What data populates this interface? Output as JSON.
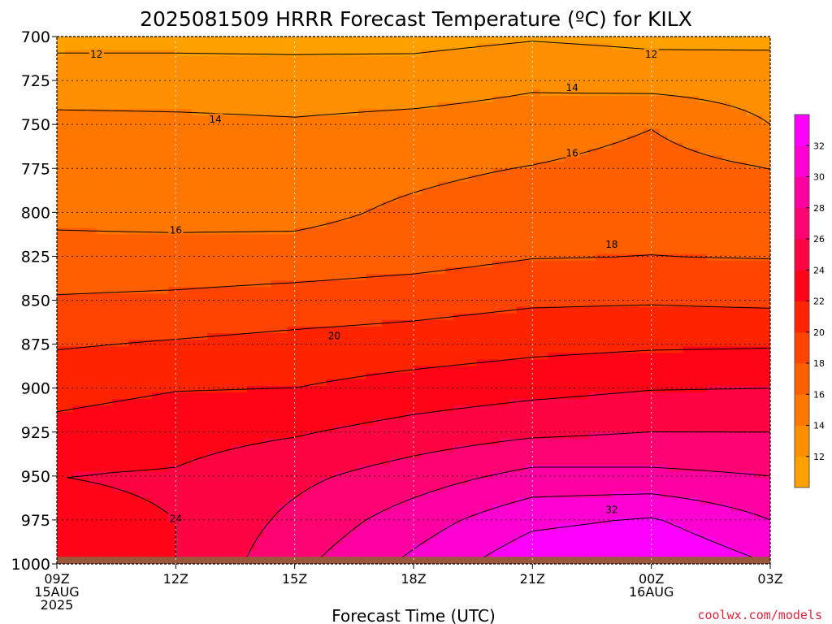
{
  "title": "2025081509 HRRR Forecast Temperature (ºC) for KILX",
  "credit": "coolwx.com/models",
  "chart_data": {
    "type": "contour",
    "title": "2025081509 HRRR Forecast Temperature (ºC) for KILX",
    "xlabel": "Forecast Time (UTC)",
    "ylabel": "",
    "x_hours": [
      0,
      3,
      6,
      9,
      12,
      15,
      18
    ],
    "x_ticks": [
      {
        "hour": 0,
        "lines": [
          "09Z",
          "15AUG",
          "2025"
        ]
      },
      {
        "hour": 3,
        "lines": [
          "12Z"
        ]
      },
      {
        "hour": 6,
        "lines": [
          "15Z"
        ]
      },
      {
        "hour": 9,
        "lines": [
          "18Z"
        ]
      },
      {
        "hour": 12,
        "lines": [
          "21Z"
        ]
      },
      {
        "hour": 15,
        "lines": [
          "00Z",
          "16AUG"
        ]
      },
      {
        "hour": 18,
        "lines": [
          "03Z"
        ]
      }
    ],
    "y_ticks": [
      700,
      725,
      750,
      775,
      800,
      825,
      850,
      875,
      900,
      925,
      950,
      975,
      1000
    ],
    "ylim": [
      1000,
      700
    ],
    "xlim": [
      0,
      18
    ],
    "grid": true,
    "surface_level_hpa": 996,
    "fill_levels": [
      12,
      14,
      16,
      18,
      20,
      22,
      24,
      26,
      28,
      30,
      32
    ],
    "fill_colors": [
      "#fe9000",
      "#fe7700",
      "#fe5f00",
      "#fe4400",
      "#fe2400",
      "#fe0416",
      "#fe0442",
      "#fe0472",
      "#fe00a2",
      "#fe00d2",
      "#fe00fe"
    ],
    "below_min_color": "#fea000",
    "ground_color": "#99593a",
    "colorbar_ticks": [
      12,
      14,
      16,
      18,
      20,
      22,
      24,
      26,
      28,
      30,
      32
    ],
    "contour_interval": 2,
    "contour_labels": [
      {
        "label": "12",
        "hour": 1.0,
        "hpa": 710
      },
      {
        "label": "12",
        "hour": 15.0,
        "hpa": 710
      },
      {
        "label": "14",
        "hour": 4.0,
        "hpa": 747
      },
      {
        "label": "14",
        "hour": 13.0,
        "hpa": 729
      },
      {
        "label": "16",
        "hour": 3.0,
        "hpa": 810
      },
      {
        "label": "16",
        "hour": 13.0,
        "hpa": 766
      },
      {
        "label": "18",
        "hour": 14.0,
        "hpa": 818
      },
      {
        "label": "20",
        "hour": 7.0,
        "hpa": 870
      },
      {
        "label": "24",
        "hour": 3.0,
        "hpa": 974
      },
      {
        "label": "32",
        "hour": 14.0,
        "hpa": 969
      }
    ],
    "temperature_grid": {
      "hours": [
        0,
        3,
        6,
        9,
        12,
        15,
        18
      ],
      "hpa": [
        700,
        725,
        750,
        775,
        800,
        825,
        850,
        875,
        900,
        925,
        950,
        975,
        1000
      ],
      "values": [
        [
          11.4,
          11.4,
          11.3,
          11.3,
          11.8,
          11.5,
          11.5
        ],
        [
          13.0,
          13.0,
          13.0,
          13.1,
          13.7,
          13.2,
          13.1
        ],
        [
          14.5,
          14.4,
          14.2,
          14.5,
          14.8,
          15.9,
          14.0
        ],
        [
          15.1,
          15.0,
          15.0,
          15.5,
          16.1,
          16.8,
          16.0
        ],
        [
          15.6,
          15.4,
          15.4,
          16.4,
          17.3,
          17.6,
          17.0
        ],
        [
          16.6,
          16.7,
          16.8,
          17.2,
          17.9,
          18.0,
          17.9
        ],
        [
          18.2,
          18.4,
          18.8,
          19.2,
          19.7,
          19.8,
          19.6
        ],
        [
          19.8,
          20.2,
          20.6,
          20.9,
          21.4,
          21.7,
          21.8
        ],
        [
          21.3,
          21.9,
          22.0,
          22.8,
          23.4,
          23.9,
          24.0
        ],
        [
          22.6,
          23.2,
          23.8,
          24.8,
          25.6,
          26.0,
          26.0
        ],
        [
          24.0,
          24.2,
          25.5,
          27.0,
          28.6,
          28.5,
          28.0
        ],
        [
          23.5,
          24.0,
          26.5,
          29.0,
          31.5,
          32.2,
          30.0
        ],
        [
          23.8,
          24.0,
          27.5,
          30.5,
          33.5,
          34.0,
          32.0
        ]
      ]
    }
  }
}
